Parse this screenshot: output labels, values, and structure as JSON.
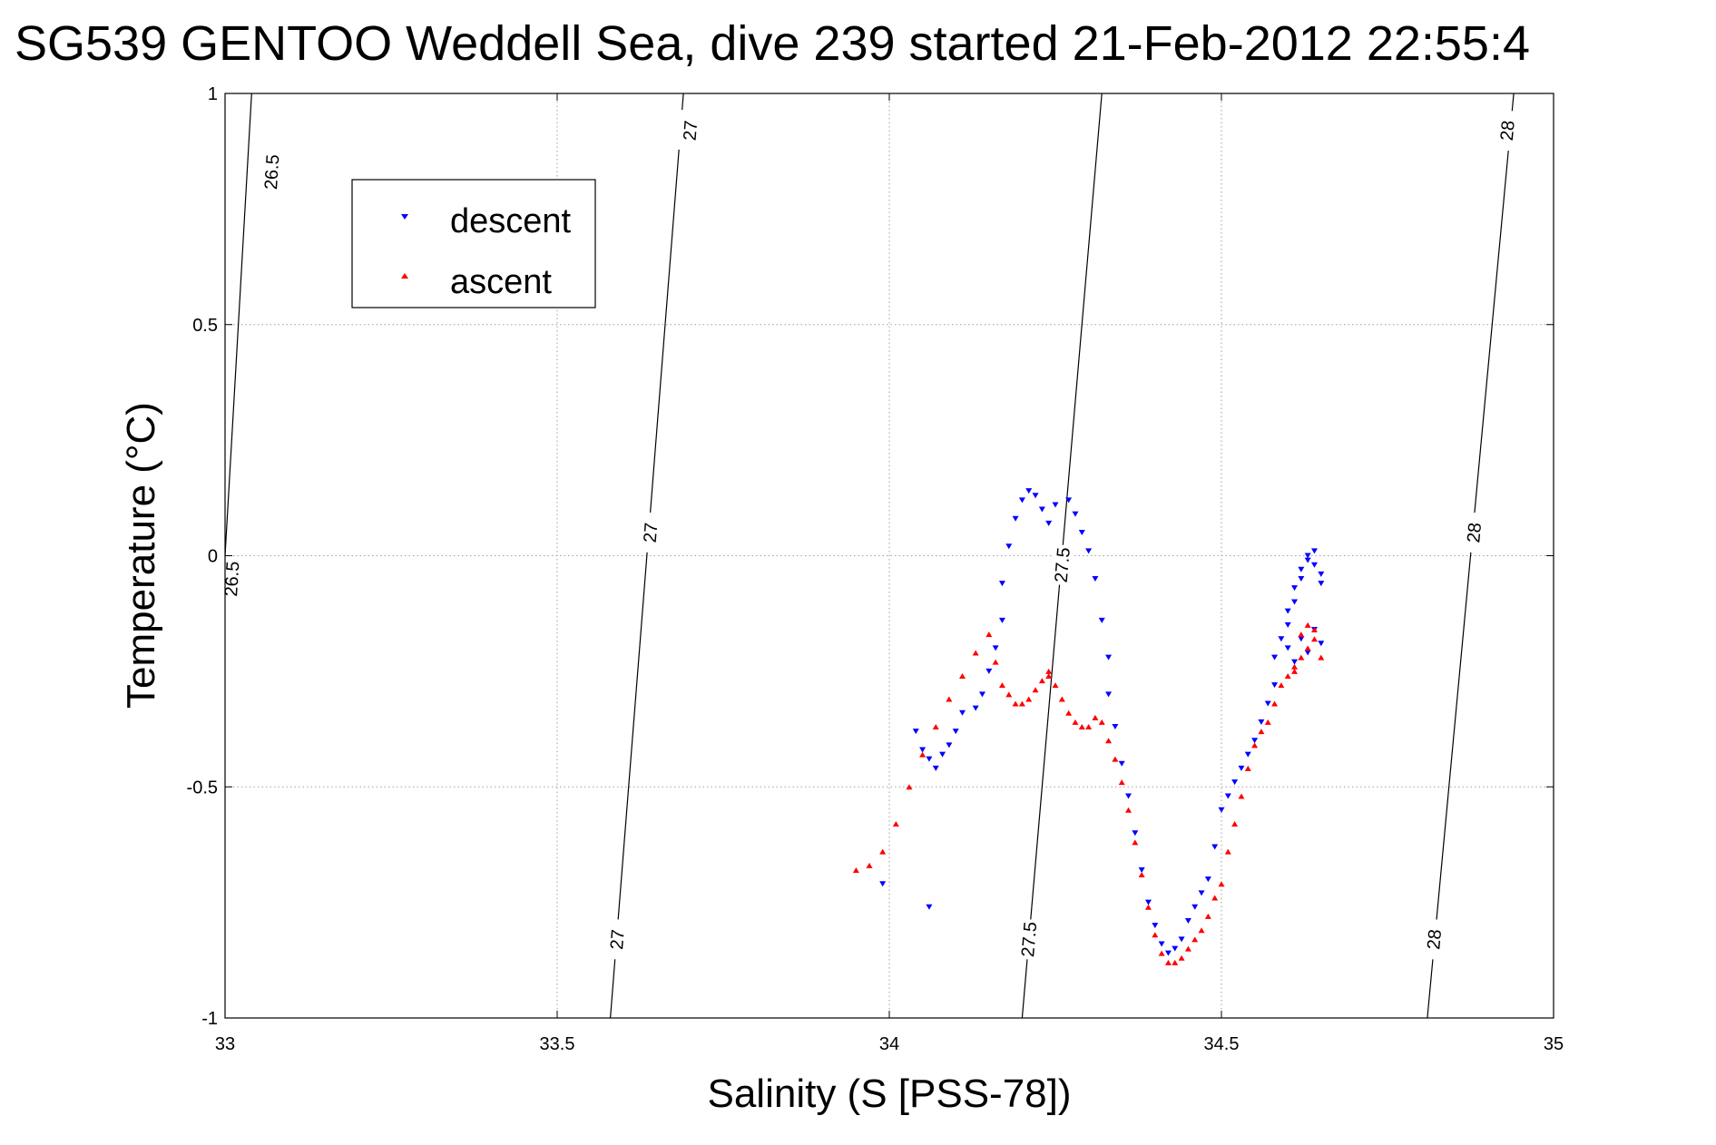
{
  "chart_data": {
    "type": "scatter",
    "title": "SG539 GENTOO Weddell Sea, dive 239 started 21-Feb-2012 22:55:4",
    "xlabel": "Salinity (S [PSS-78])",
    "ylabel": "Temperature (°C)",
    "xlim": [
      33,
      35
    ],
    "ylim": [
      -1,
      1
    ],
    "xticks": [
      33,
      33.5,
      34,
      34.5,
      35
    ],
    "xtick_labels": [
      "33",
      "33.5",
      "34",
      "34.5",
      "35"
    ],
    "yticks": [
      -1,
      -0.5,
      0,
      0.5,
      1
    ],
    "ytick_labels": [
      "-1",
      "-0.5",
      "0",
      "0.5",
      "1"
    ],
    "grid": true,
    "legend": {
      "position": "top-left",
      "entries": [
        "descent",
        "ascent"
      ]
    },
    "colors": {
      "descent": "#0000ff",
      "ascent": "#ff0000",
      "contour": "#000000",
      "grid": "#a0a0a0"
    },
    "density_contours": [
      {
        "label": "26.5",
        "points": [
          [
            33.04,
            1.0
          ],
          [
            33.0,
            0.0
          ],
          [
            32.99,
            -0.15
          ]
        ],
        "labels": [
          {
            "x": 33.07,
            "y": 0.83,
            "text": "26.5"
          },
          {
            "x": 33.01,
            "y": -0.05,
            "text": "26.5"
          }
        ]
      },
      {
        "label": "27",
        "points": [
          [
            33.69,
            1.0
          ],
          [
            33.58,
            -1.0
          ]
        ],
        "labels": [
          {
            "x": 33.7,
            "y": 0.92,
            "text": "27"
          },
          {
            "x": 33.64,
            "y": 0.05,
            "text": "27"
          },
          {
            "x": 33.59,
            "y": -0.83,
            "text": "27"
          }
        ]
      },
      {
        "label": "27.5",
        "points": [
          [
            34.32,
            1.0
          ],
          [
            34.2,
            -1.0
          ]
        ],
        "labels": [
          {
            "x": 34.26,
            "y": -0.02,
            "text": "27.5"
          },
          {
            "x": 34.21,
            "y": -0.83,
            "text": "27.5"
          }
        ]
      },
      {
        "label": "28",
        "points": [
          [
            34.94,
            1.0
          ],
          [
            34.81,
            -1.0
          ]
        ],
        "labels": [
          {
            "x": 34.93,
            "y": 0.92,
            "text": "28"
          },
          {
            "x": 34.88,
            "y": 0.05,
            "text": "28"
          },
          {
            "x": 34.82,
            "y": -0.83,
            "text": "28"
          }
        ]
      }
    ],
    "series": [
      {
        "name": "descent",
        "marker": "triangle-down",
        "x": [
          33.99,
          34.06,
          34.04,
          34.05,
          34.06,
          34.07,
          34.08,
          34.09,
          34.1,
          34.11,
          34.13,
          34.14,
          34.15,
          34.16,
          34.17,
          34.17,
          34.18,
          34.19,
          34.2,
          34.21,
          34.22,
          34.23,
          34.24,
          34.25,
          34.27,
          34.28,
          34.29,
          34.3,
          34.31,
          34.32,
          34.33,
          34.33,
          34.34,
          34.35,
          34.36,
          34.37,
          34.38,
          34.39,
          34.4,
          34.41,
          34.42,
          34.43,
          34.44,
          34.45,
          34.46,
          34.47,
          34.48,
          34.49,
          34.5,
          34.51,
          34.52,
          34.53,
          34.54,
          34.55,
          34.56,
          34.57,
          34.58,
          34.58,
          34.59,
          34.6,
          34.6,
          34.61,
          34.61,
          34.62,
          34.62,
          34.63,
          34.63,
          34.64,
          34.64,
          34.65,
          34.65,
          34.6,
          34.62,
          34.64,
          34.61,
          34.63,
          34.65
        ],
        "y": [
          -0.71,
          -0.76,
          -0.38,
          -0.42,
          -0.44,
          -0.46,
          -0.43,
          -0.41,
          -0.38,
          -0.34,
          -0.33,
          -0.3,
          -0.25,
          -0.2,
          -0.14,
          -0.06,
          0.02,
          0.08,
          0.12,
          0.14,
          0.13,
          0.1,
          0.07,
          0.11,
          0.12,
          0.09,
          0.05,
          0.01,
          -0.05,
          -0.14,
          -0.22,
          -0.3,
          -0.37,
          -0.45,
          -0.52,
          -0.6,
          -0.68,
          -0.75,
          -0.8,
          -0.84,
          -0.86,
          -0.85,
          -0.83,
          -0.79,
          -0.76,
          -0.73,
          -0.7,
          -0.63,
          -0.55,
          -0.52,
          -0.49,
          -0.46,
          -0.43,
          -0.4,
          -0.36,
          -0.32,
          -0.28,
          -0.22,
          -0.18,
          -0.15,
          -0.12,
          -0.1,
          -0.07,
          -0.05,
          -0.03,
          -0.01,
          0.0,
          0.01,
          -0.02,
          -0.04,
          -0.06,
          -0.2,
          -0.18,
          -0.16,
          -0.23,
          -0.21,
          -0.19
        ]
      },
      {
        "name": "ascent",
        "marker": "triangle-up",
        "x": [
          33.95,
          33.97,
          33.99,
          34.01,
          34.03,
          34.05,
          34.07,
          34.09,
          34.11,
          34.13,
          34.15,
          34.16,
          34.17,
          34.18,
          34.19,
          34.2,
          34.21,
          34.22,
          34.23,
          34.24,
          34.24,
          34.25,
          34.26,
          34.27,
          34.28,
          34.29,
          34.3,
          34.31,
          34.32,
          34.33,
          34.34,
          34.35,
          34.36,
          34.37,
          34.38,
          34.39,
          34.4,
          34.41,
          34.42,
          34.43,
          34.44,
          34.45,
          34.46,
          34.47,
          34.48,
          34.49,
          34.5,
          34.51,
          34.52,
          34.53,
          34.54,
          34.55,
          34.56,
          34.57,
          34.58,
          34.59,
          34.6,
          34.61,
          34.62,
          34.63,
          34.64,
          34.62,
          34.63,
          34.64,
          34.61,
          34.65
        ],
        "y": [
          -0.68,
          -0.67,
          -0.64,
          -0.58,
          -0.5,
          -0.43,
          -0.37,
          -0.31,
          -0.26,
          -0.21,
          -0.17,
          -0.23,
          -0.28,
          -0.3,
          -0.32,
          -0.32,
          -0.31,
          -0.29,
          -0.27,
          -0.26,
          -0.25,
          -0.28,
          -0.31,
          -0.34,
          -0.36,
          -0.37,
          -0.37,
          -0.35,
          -0.36,
          -0.4,
          -0.44,
          -0.49,
          -0.55,
          -0.62,
          -0.69,
          -0.76,
          -0.82,
          -0.86,
          -0.88,
          -0.88,
          -0.87,
          -0.85,
          -0.83,
          -0.81,
          -0.78,
          -0.74,
          -0.71,
          -0.64,
          -0.58,
          -0.52,
          -0.46,
          -0.41,
          -0.38,
          -0.36,
          -0.32,
          -0.28,
          -0.26,
          -0.25,
          -0.22,
          -0.2,
          -0.18,
          -0.17,
          -0.15,
          -0.16,
          -0.24,
          -0.22
        ]
      }
    ]
  }
}
